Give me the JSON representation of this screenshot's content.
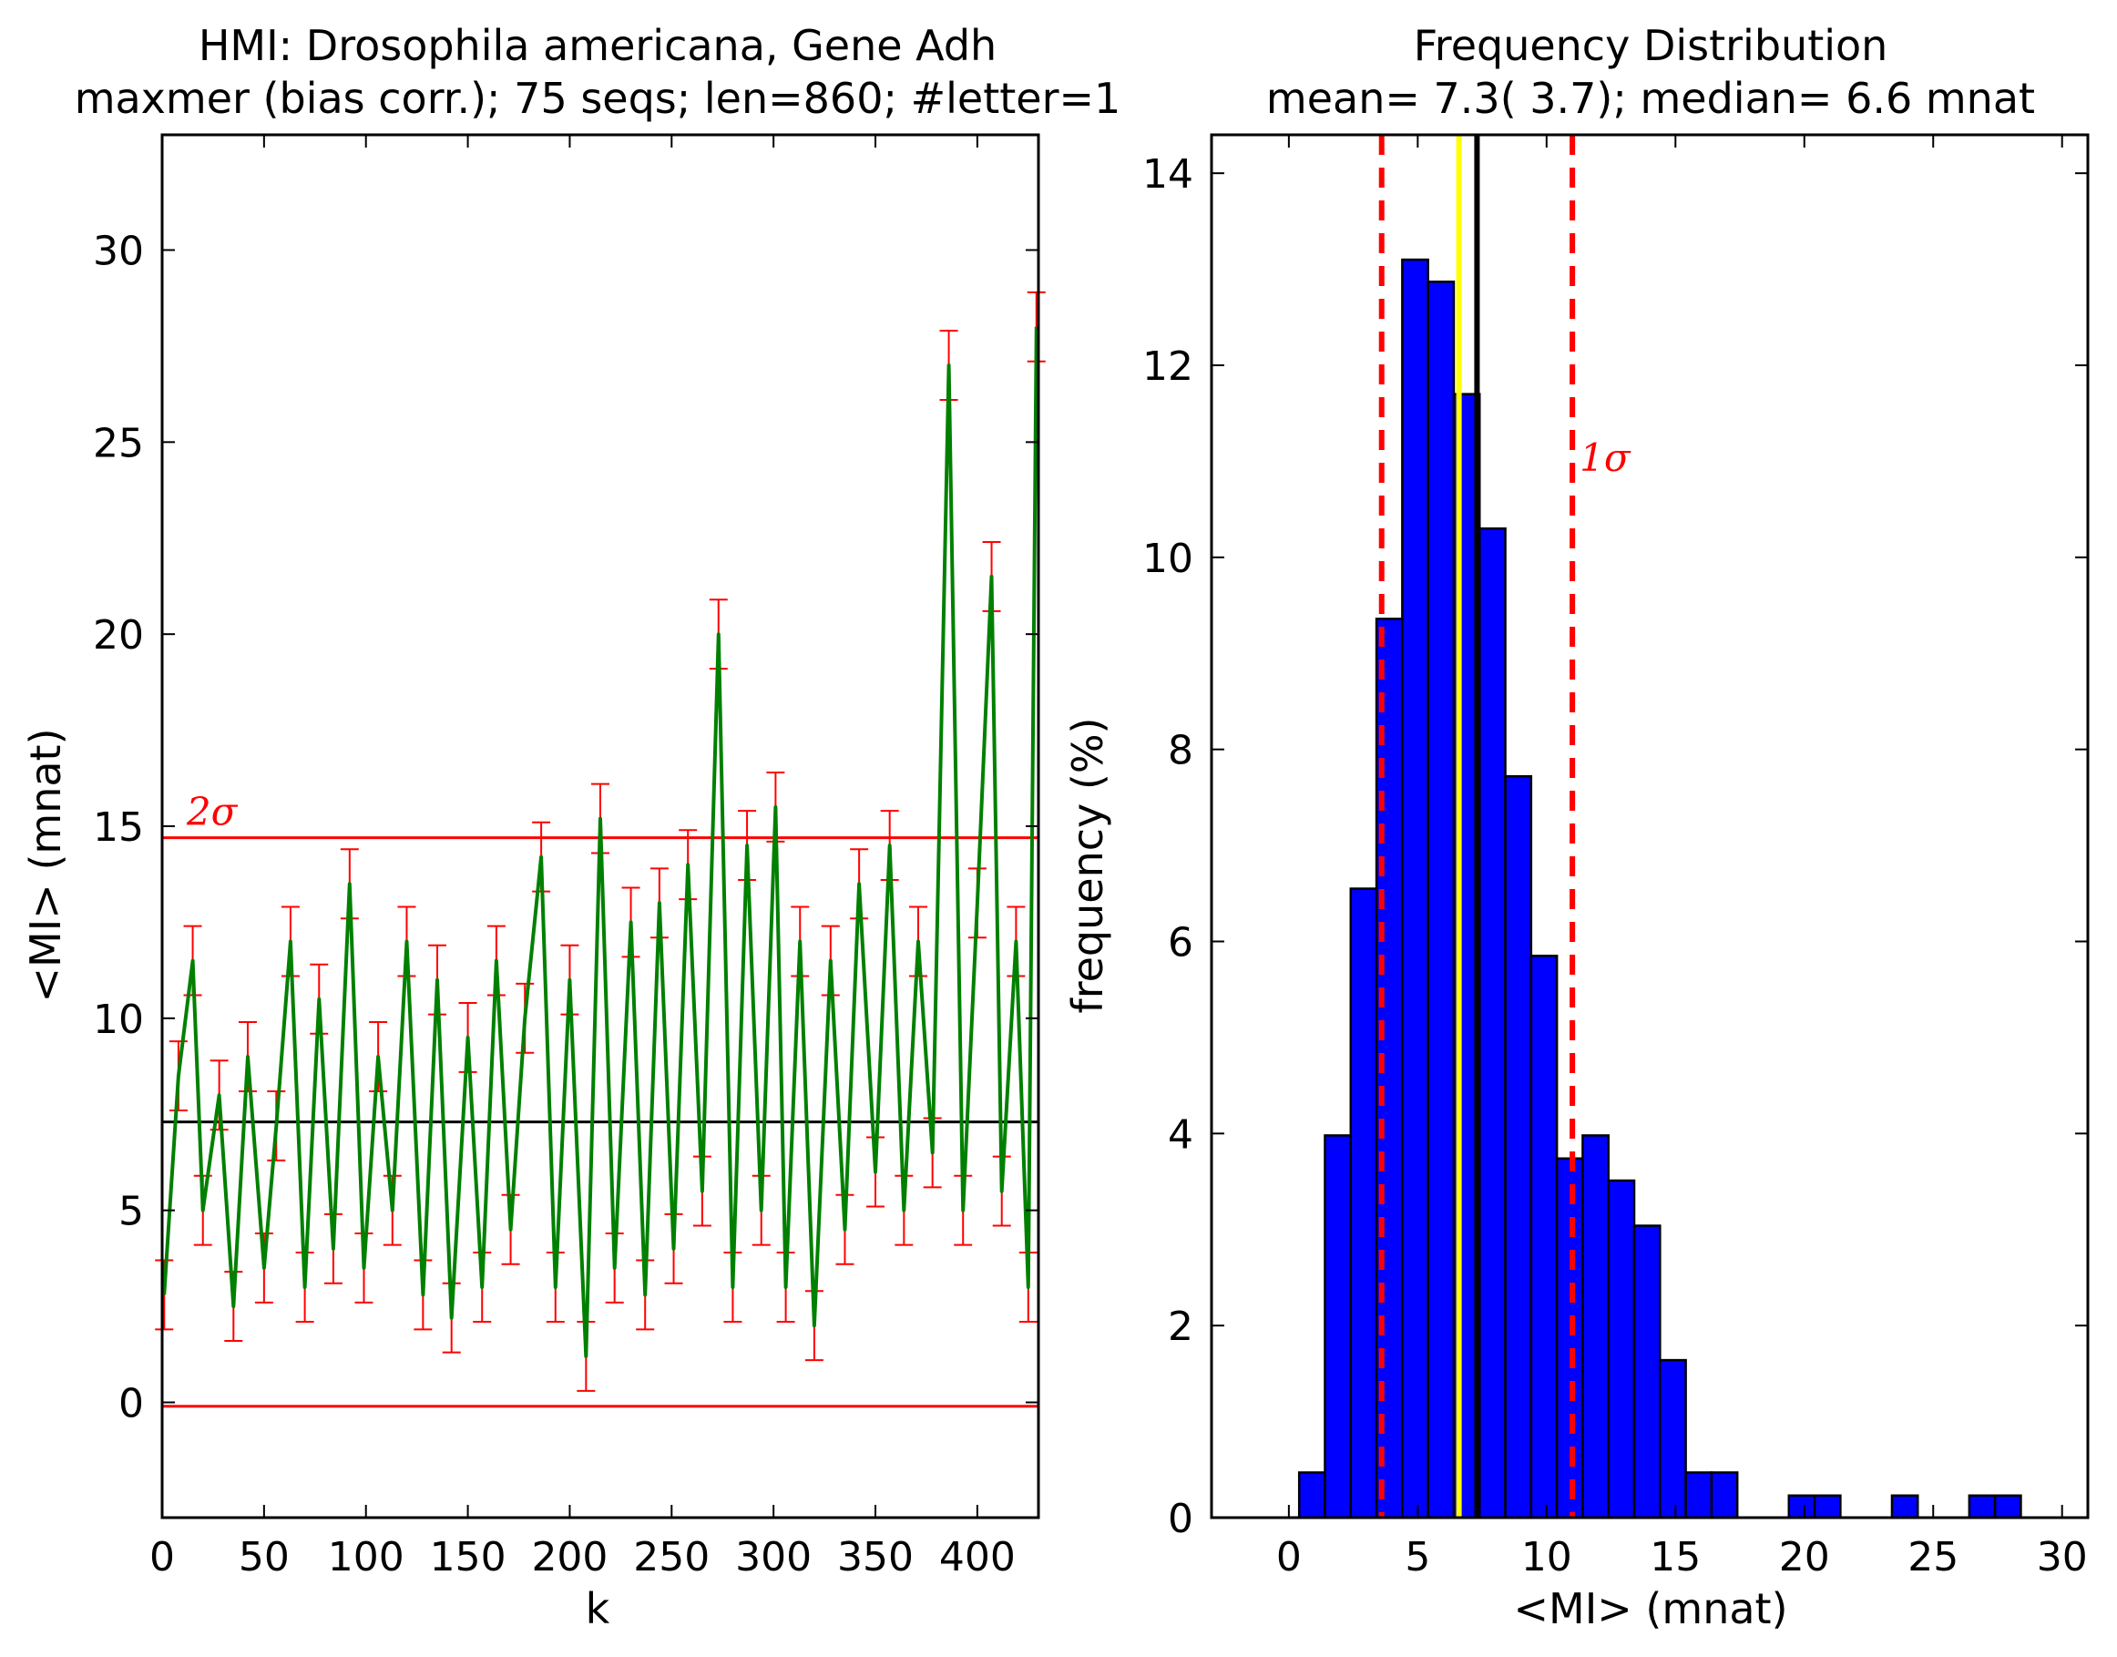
{
  "chart_data": [
    {
      "type": "line",
      "title": "HMI: Drosophila americana, Gene Adh",
      "subtitle": "maxmer (bias corr.); 75 seqs; len=860; #letter=1",
      "xlabel": "k",
      "ylabel": "<MI> (mnat)",
      "xlim": [
        0,
        430
      ],
      "ylim": [
        -3,
        33
      ],
      "xticks": [
        "0",
        "50",
        "100",
        "150",
        "200",
        "250",
        "300",
        "350",
        "400"
      ],
      "yticks": [
        "0",
        "5",
        "10",
        "15",
        "20",
        "25",
        "30"
      ],
      "mean_line": 7.3,
      "upper_line": 14.7,
      "lower_line": -0.1,
      "upper_label": "2σ",
      "grid": false,
      "series": [
        {
          "color": "#008000",
          "error_color": "#ff0000",
          "error_bar": 0.9,
          "x": [
            1,
            8,
            15,
            20,
            28,
            35,
            42,
            50,
            56,
            63,
            70,
            77,
            84,
            92,
            99,
            106,
            113,
            120,
            128,
            135,
            142,
            150,
            157,
            164,
            171,
            178,
            186,
            193,
            200,
            208,
            215,
            222,
            230,
            237,
            244,
            251,
            258,
            265,
            273,
            280,
            287,
            294,
            301,
            306,
            313,
            320,
            328,
            335,
            342,
            350,
            357,
            364,
            371,
            378,
            386,
            393,
            400,
            407,
            412,
            419,
            425,
            429
          ],
          "y": [
            2.8,
            8.5,
            11.5,
            5.0,
            8.0,
            2.5,
            9.0,
            3.5,
            7.2,
            12.0,
            3.0,
            10.5,
            4.0,
            13.5,
            3.5,
            9.0,
            5.0,
            12.0,
            2.8,
            11.0,
            2.2,
            9.5,
            3.0,
            11.5,
            4.5,
            10.0,
            14.2,
            3.0,
            11.0,
            1.2,
            15.2,
            3.5,
            12.5,
            2.8,
            13.0,
            4.0,
            14.0,
            5.5,
            20.0,
            3.0,
            14.5,
            5.0,
            15.5,
            3.0,
            12.0,
            2.0,
            11.5,
            4.5,
            13.5,
            6.0,
            14.5,
            5.0,
            12.0,
            6.5,
            27.0,
            5.0,
            13.0,
            21.5,
            5.5,
            12.0,
            3.0,
            28.0
          ]
        }
      ]
    },
    {
      "type": "bar",
      "title": "Frequency Distribution",
      "subtitle": "mean=  7.3(  3.7); median=  6.6 mnat",
      "xlabel": "<MI> (mnat)",
      "ylabel": "frequency (%)",
      "xlim": [
        -3,
        31
      ],
      "ylim": [
        0,
        14.4
      ],
      "xticks": [
        "0",
        "5",
        "10",
        "15",
        "20",
        "25",
        "30"
      ],
      "yticks": [
        "0",
        "2",
        "4",
        "6",
        "8",
        "10",
        "12",
        "14"
      ],
      "bin_width": 1.0,
      "bin_starts": [
        0.4,
        1.4,
        2.4,
        3.4,
        4.4,
        5.4,
        6.4,
        7.4,
        8.4,
        9.4,
        10.4,
        11.4,
        12.4,
        13.4,
        14.4,
        15.4,
        16.4,
        17.4,
        18.4,
        19.4,
        20.4,
        21.4,
        22.4,
        23.4,
        24.4,
        25.4,
        26.4,
        27.4
      ],
      "values": [
        0.47,
        3.98,
        6.55,
        9.36,
        13.1,
        12.87,
        11.7,
        10.3,
        7.72,
        5.85,
        3.74,
        3.98,
        3.51,
        3.04,
        1.64,
        0.47,
        0.47,
        0,
        0,
        0.23,
        0.23,
        0,
        0,
        0.23,
        0,
        0,
        0.23,
        0.23
      ],
      "bar_color": "#0000ff",
      "mean": 7.3,
      "median": 6.6,
      "sigma_low": 3.6,
      "sigma_high": 11.0,
      "sigma_label": "1σ",
      "grid": false
    }
  ]
}
